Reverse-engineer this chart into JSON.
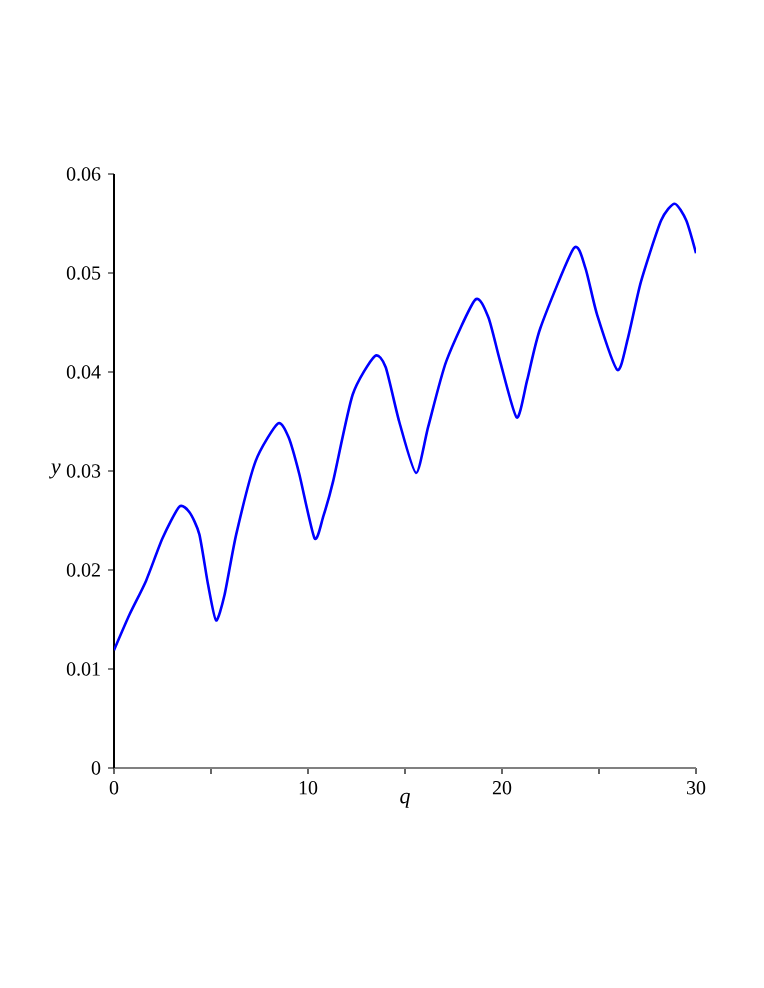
{
  "chart_data": {
    "type": "line",
    "xlabel": "q",
    "ylabel": "y",
    "x": [
      0,
      0.8,
      1.65,
      2.5,
      3.37,
      3.9,
      4.4,
      4.85,
      5.26,
      5.7,
      6.3,
      7.3,
      8.45,
      9.0,
      9.55,
      10.34,
      10.8,
      11.3,
      12.3,
      13.44,
      14.0,
      14.7,
      15.57,
      16.2,
      17.13,
      18.62,
      19.3,
      19.9,
      20.76,
      21.3,
      21.97,
      23.7,
      24.3,
      24.9,
      25.95,
      26.5,
      27.16,
      28.2,
      28.9,
      29.5,
      30
    ],
    "series": [
      {
        "color": "#0000ff",
        "values": [
          0.0119,
          0.0155,
          0.0189,
          0.0232,
          0.0264,
          0.0258,
          0.0236,
          0.0185,
          0.0149,
          0.0175,
          0.0236,
          0.031,
          0.0348,
          0.0334,
          0.0297,
          0.0232,
          0.0255,
          0.029,
          0.0377,
          0.0416,
          0.0405,
          0.035,
          0.0298,
          0.0345,
          0.0411,
          0.0473,
          0.0455,
          0.0411,
          0.0354,
          0.0392,
          0.0444,
          0.0525,
          0.0505,
          0.0458,
          0.0402,
          0.0435,
          0.0491,
          0.0553,
          0.057,
          0.0553,
          0.052
        ]
      }
    ],
    "xlim": [
      0,
      30
    ],
    "ylim": [
      0,
      0.06
    ],
    "xticks": [
      0,
      {
        "value": 5,
        "label": null
      },
      10,
      {
        "value": 15,
        "label": null
      },
      20,
      {
        "value": 25,
        "label": null
      },
      30
    ],
    "yticks": [
      0,
      0.01,
      0.02,
      0.03,
      0.04,
      0.05,
      0.06
    ],
    "grid": false,
    "legend": false,
    "marker": "none",
    "line_style": "solid"
  }
}
